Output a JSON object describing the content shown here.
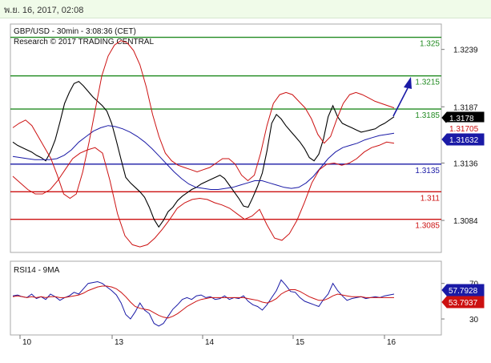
{
  "header": {
    "datetime": "พ.ย. 16, 2017, 02:08"
  },
  "chart_data": [
    {
      "type": "line",
      "instrument": "GBP/USD - 30min - 3:08:36 (CET)",
      "caption": "Research © 2017 TRADING CENTRAL",
      "x_tick_labels": [
        "10",
        "13",
        "14",
        "15",
        "16"
      ],
      "y_tick_labels": [
        "1.3239",
        "1.3187",
        "1.3136",
        "1.3084"
      ],
      "ylim": [
        1.3055,
        1.3262
      ],
      "horizontal_levels": [
        {
          "value": 1.325,
          "label": "1.325",
          "color": "#228b22"
        },
        {
          "value": 1.3215,
          "label": "1.3215",
          "color": "#228b22"
        },
        {
          "value": 1.3185,
          "label": "1.3185",
          "color": "#228b22"
        },
        {
          "value": 1.3135,
          "label": "1.3135",
          "color": "#1a1aa6"
        },
        {
          "value": 1.311,
          "label": "1.311",
          "color": "#cc1111"
        },
        {
          "value": 1.3085,
          "label": "1.3085",
          "color": "#cc1111"
        }
      ],
      "price_tags": [
        {
          "value": 1.3178,
          "label": "1.3178",
          "color": "#000000"
        },
        {
          "value": 1.31705,
          "label": "1.31705",
          "color": "#cc1111"
        },
        {
          "value": 1.31632,
          "label": "1.31632",
          "color": "#1a1aa6"
        }
      ],
      "series": [
        {
          "color": "#000000",
          "values": [
            1.3155,
            1.3152,
            1.315,
            1.3148,
            1.3146,
            1.3143,
            1.3141,
            1.3138,
            1.3146,
            1.3157,
            1.3173,
            1.319,
            1.32,
            1.3208,
            1.321,
            1.3206,
            1.3201,
            1.3196,
            1.3192,
            1.3188,
            1.3183,
            1.3172,
            1.3156,
            1.3139,
            1.3123,
            1.3118,
            1.3114,
            1.311,
            1.3105,
            1.3096,
            1.3085,
            1.3078,
            1.3084,
            1.3092,
            1.3096,
            1.3102,
            1.3106,
            1.3109,
            1.3112,
            1.3114,
            1.3117,
            1.3119,
            1.3121,
            1.3123,
            1.3125,
            1.3122,
            1.3116,
            1.311,
            1.3104,
            1.3097,
            1.3096,
            1.3105,
            1.3115,
            1.3127,
            1.3147,
            1.3172,
            1.318,
            1.3176,
            1.317,
            1.3165,
            1.316,
            1.3155,
            1.3149,
            1.3141,
            1.3138,
            1.3144,
            1.3158,
            1.3178,
            1.3188,
            1.3178,
            1.3172,
            1.317,
            1.3168,
            1.3166,
            1.3164,
            1.3165,
            1.3166,
            1.3167,
            1.317,
            1.3172,
            1.3175,
            1.3178
          ]
        },
        {
          "color": "#1a1aa6",
          "values": [
            1.3142,
            1.3141,
            1.314,
            1.3139,
            1.3139,
            1.3139,
            1.314,
            1.3143,
            1.3148,
            1.3155,
            1.316,
            1.3165,
            1.3168,
            1.317,
            1.3169,
            1.3167,
            1.3164,
            1.316,
            1.3155,
            1.3149,
            1.3142,
            1.3135,
            1.3128,
            1.3122,
            1.3117,
            1.3114,
            1.3113,
            1.3112,
            1.3112,
            1.3113,
            1.3114,
            1.3116,
            1.3118,
            1.312,
            1.312,
            1.3118,
            1.3116,
            1.3114,
            1.3113,
            1.3114,
            1.3118,
            1.3124,
            1.3132,
            1.314,
            1.3146,
            1.315,
            1.3152,
            1.3154,
            1.3157,
            1.3159,
            1.3161,
            1.3162,
            1.3163
          ]
        },
        {
          "color": "#cc1111",
          "values": [
            1.3168,
            1.3172,
            1.3175,
            1.317,
            1.316,
            1.315,
            1.314,
            1.3125,
            1.3108,
            1.3104,
            1.3108,
            1.3128,
            1.3155,
            1.3185,
            1.3215,
            1.3233,
            1.3243,
            1.3247,
            1.3245,
            1.3238,
            1.3225,
            1.3205,
            1.318,
            1.316,
            1.3145,
            1.3138,
            1.3134,
            1.3132,
            1.313,
            1.3128,
            1.313,
            1.3132,
            1.3136,
            1.314,
            1.314,
            1.3135,
            1.3125,
            1.312,
            1.3125,
            1.3145,
            1.317,
            1.319,
            1.3198,
            1.32,
            1.3198,
            1.3192,
            1.3186,
            1.3176,
            1.3162,
            1.3154,
            1.316,
            1.3176,
            1.319,
            1.3198,
            1.32,
            1.3198,
            1.3195,
            1.3192,
            1.319,
            1.3188,
            1.3186
          ]
        },
        {
          "color": "#cc1111",
          "values": [
            1.3124,
            1.3118,
            1.3112,
            1.3108,
            1.3108,
            1.3112,
            1.312,
            1.313,
            1.314,
            1.3145,
            1.3148,
            1.315,
            1.3145,
            1.312,
            1.309,
            1.307,
            1.3062,
            1.306,
            1.3062,
            1.3068,
            1.3076,
            1.3085,
            1.3095,
            1.31,
            1.3103,
            1.3104,
            1.3103,
            1.31,
            1.3098,
            1.3095,
            1.309,
            1.3085,
            1.3088,
            1.3094,
            1.308,
            1.3068,
            1.3066,
            1.3072,
            1.3084,
            1.31,
            1.3118,
            1.313,
            1.3135,
            1.3136,
            1.3134,
            1.3136,
            1.314,
            1.3146,
            1.315,
            1.3152,
            1.3155,
            1.3154
          ]
        }
      ]
    },
    {
      "type": "line",
      "title": "RSI14 - 9MA",
      "y_tick_labels": [
        "70",
        "30"
      ],
      "ylim": [
        12,
        95
      ],
      "price_tags": [
        {
          "value": 57.7928,
          "label": "57.7928",
          "color": "#1a1aa6"
        },
        {
          "value": 53.7937,
          "label": "53.7937",
          "color": "#cc1111"
        }
      ],
      "series": [
        {
          "color": "#1a1aa6",
          "values": [
            56,
            57,
            55,
            54,
            58,
            53,
            55,
            52,
            58,
            55,
            51,
            54,
            56,
            60,
            58,
            64,
            70,
            71,
            72,
            70,
            66,
            62,
            57,
            48,
            35,
            30,
            38,
            48,
            40,
            36,
            25,
            22,
            25,
            33,
            41,
            46,
            52,
            54,
            52,
            56,
            57,
            54,
            55,
            52,
            53,
            56,
            52,
            54,
            53,
            56,
            50,
            46,
            44,
            40,
            46,
            54,
            62,
            74,
            68,
            61,
            60,
            54,
            50,
            48,
            46,
            44,
            52,
            58,
            70,
            62,
            56,
            51,
            53,
            54,
            55,
            53,
            54,
            55,
            54,
            56,
            57,
            58
          ]
        },
        {
          "color": "#cc1111",
          "values": [
            55,
            56,
            55,
            54,
            55,
            54,
            55,
            54,
            55,
            55,
            54,
            54,
            55,
            56,
            57,
            59,
            62,
            64,
            66,
            67,
            67,
            66,
            64,
            60,
            55,
            49,
            44,
            42,
            41,
            40,
            37,
            34,
            32,
            31,
            33,
            36,
            40,
            44,
            47,
            50,
            52,
            53,
            54,
            54,
            54,
            54,
            54,
            54,
            54,
            54,
            53,
            52,
            51,
            49,
            48,
            50,
            53,
            58,
            61,
            63,
            63,
            61,
            58,
            55,
            53,
            51,
            51,
            53,
            56,
            58,
            57,
            56,
            55,
            55,
            55,
            54,
            54,
            54,
            54,
            54,
            54,
            54
          ]
        }
      ]
    }
  ]
}
